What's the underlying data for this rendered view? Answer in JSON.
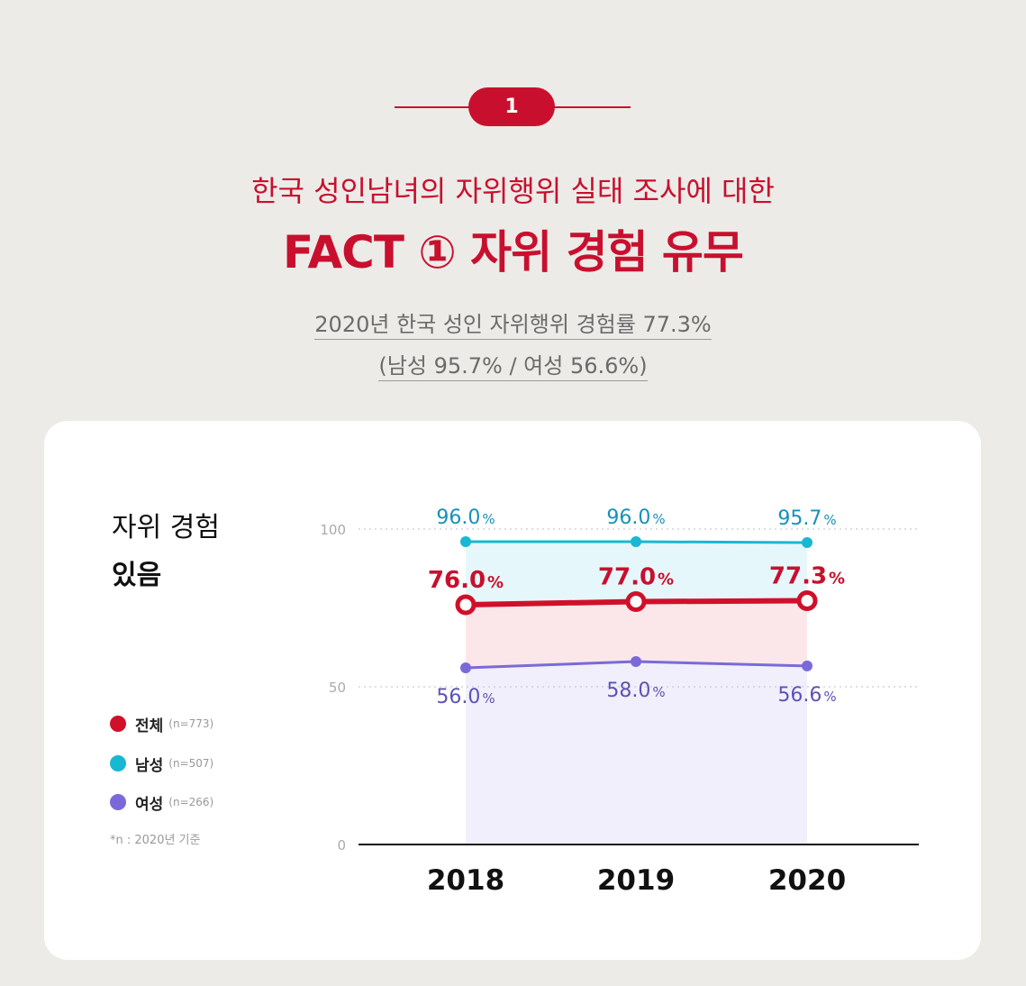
{
  "badge": {
    "number": "1"
  },
  "header": {
    "headline": "한국 성인남녀의 자위행위 실태 조사에 대한",
    "title": "FACT ① 자위 경험 유무",
    "summary_line1": "2020년 한국 성인 자위행위 경험률 77.3%",
    "summary_line2": "(남성 95.7% / 여성 56.6%)"
  },
  "chart_heading": {
    "line1": "자위 경험",
    "line2": "있음"
  },
  "legend": [
    {
      "label": "전체",
      "n": "(n=773)",
      "color": "#d0102a"
    },
    {
      "label": "남성",
      "n": "(n=507)",
      "color": "#17b8d1"
    },
    {
      "label": "여성",
      "n": "(n=266)",
      "color": "#7a6ad9"
    }
  ],
  "note": "*n : 2020년 기준",
  "chart_data": {
    "type": "line",
    "x": [
      "2018",
      "2019",
      "2020"
    ],
    "yticks": [
      "0",
      "50",
      "100"
    ],
    "ylim": [
      0,
      100
    ],
    "series": [
      {
        "name": "남성",
        "values": [
          96.0,
          96.0,
          95.7
        ],
        "labels": [
          "96.0",
          "96.0",
          "95.7"
        ],
        "color": "#17b8d1",
        "label_color": "#1890b8",
        "fill": "#e6f7fb",
        "width": 3,
        "marker": "dot"
      },
      {
        "name": "전체",
        "values": [
          76.0,
          77.0,
          77.3
        ],
        "labels": [
          "76.0",
          "77.0",
          "77.3"
        ],
        "color": "#d0102a",
        "label_color": "#c8102e",
        "fill": "#fbe7e9",
        "width": 6,
        "marker": "ring"
      },
      {
        "name": "여성",
        "values": [
          56.0,
          58.0,
          56.6
        ],
        "labels": [
          "56.0",
          "58.0",
          "56.6"
        ],
        "color": "#7a6ad9",
        "label_color": "#5c52b5",
        "fill": "#f1effb",
        "width": 3,
        "marker": "dot"
      }
    ],
    "unit": "%"
  }
}
